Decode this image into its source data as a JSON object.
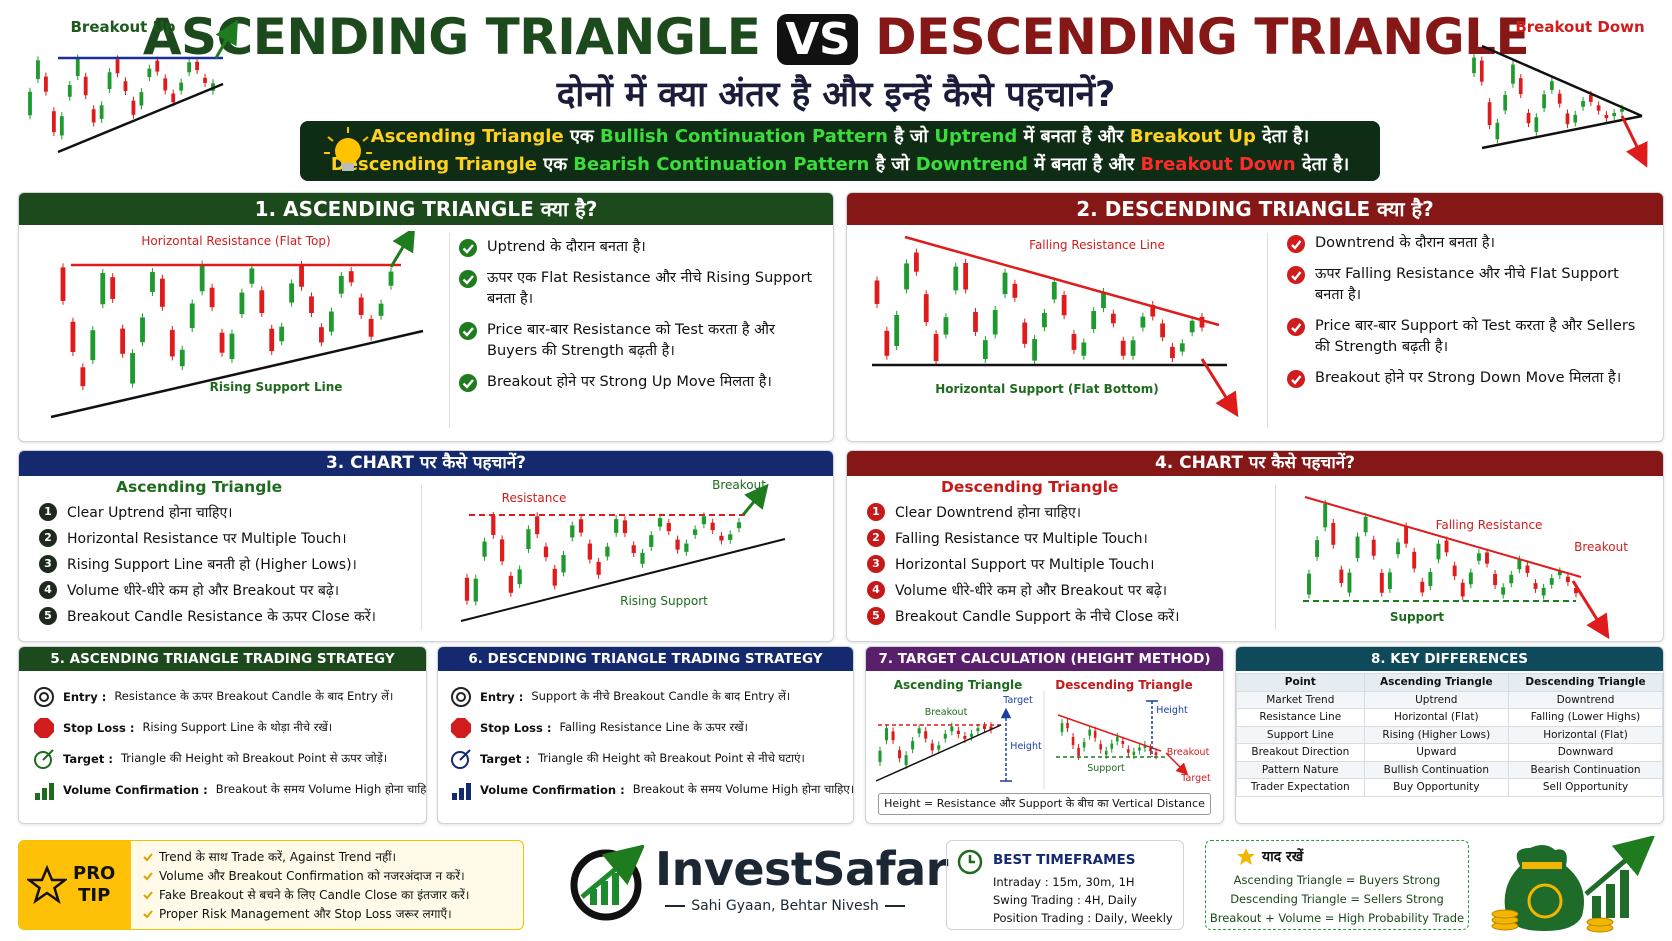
{
  "header": {
    "title_left": "ASCENDING TRIANGLE",
    "vs": "VS",
    "title_right": "DESCENDING TRIANGLE",
    "subtitle": "दोनों में क्या अंतर है और इन्हें कैसे पहचानें?",
    "corner_left": "Breakout Up",
    "corner_right": "Breakout Down",
    "summary": [
      [
        {
          "text": "Ascending Triangle",
          "color": "#ffd21f"
        },
        {
          "text": " एक ",
          "color": "#ffffff"
        },
        {
          "text": "Bullish Continuation Pattern",
          "color": "#3ddc3d"
        },
        {
          "text": " है जो ",
          "color": "#ffffff"
        },
        {
          "text": "Uptrend",
          "color": "#3ddc3d"
        },
        {
          "text": " में बनता है और ",
          "color": "#ffffff"
        },
        {
          "text": "Breakout Up",
          "color": "#ffd21f"
        },
        {
          "text": " देता है।",
          "color": "#ffffff"
        }
      ],
      [
        {
          "text": "Descending Triangle",
          "color": "#ffd21f"
        },
        {
          "text": " एक ",
          "color": "#ffffff"
        },
        {
          "text": "Bearish Continuation Pattern",
          "color": "#3ddc3d"
        },
        {
          "text": " है जो ",
          "color": "#ffffff"
        },
        {
          "text": "Downtrend",
          "color": "#3ddc3d"
        },
        {
          "text": " में बनता है और ",
          "color": "#ffffff"
        },
        {
          "text": "Breakout Down",
          "color": "#ff2b2b"
        },
        {
          "text": " देता है।",
          "color": "#ffffff"
        }
      ]
    ]
  },
  "section1": {
    "title": "1. ASCENDING TRIANGLE क्या है?",
    "resistance_label": "Horizontal Resistance (Flat Top)",
    "support_label": "Rising Support Line",
    "points": [
      "Uptrend के दौरान बनता है।",
      "ऊपर एक Flat Resistance और नीचे Rising Support बनता है।",
      "Price बार-बार Resistance को Test करता है और Buyers की Strength बढ़ती है।",
      "Breakout होने पर Strong Up Move मिलता है।"
    ]
  },
  "section2": {
    "title": "2. DESCENDING TRIANGLE क्या है?",
    "resistance_label": "Falling Resistance Line",
    "support_label": "Horizontal Support (Flat Bottom)",
    "points": [
      "Downtrend के दौरान बनता है।",
      "ऊपर Falling Resistance और नीचे Flat Support बनता है।",
      "Price बार-बार Support को Test करता है और Sellers की Strength बढ़ती है।",
      "Breakout होने पर Strong Down Move मिलता है।"
    ]
  },
  "section3": {
    "title": "3. CHART पर कैसे पहचानें?",
    "heading": "Ascending Triangle",
    "resistance_label": "Resistance",
    "breakout_label": "Breakout",
    "support_label": "Rising Support",
    "steps": [
      {
        "num": 1,
        "text": "Clear Uptrend होना चाहिए।"
      },
      {
        "num": 2,
        "text": "Horizontal Resistance पर Multiple Touch।"
      },
      {
        "num": 3,
        "text": "Rising Support Line बनती हो (Higher Lows)।"
      },
      {
        "num": 4,
        "text": "Volume धीरे-धीरे कम हो और Breakout पर बढ़े।"
      },
      {
        "num": 5,
        "text": "Breakout Candle Resistance के ऊपर Close करें।"
      }
    ]
  },
  "section4": {
    "title": "4. CHART पर कैसे पहचानें?",
    "heading": "Descending Triangle",
    "resistance_label": "Falling Resistance",
    "breakout_label": "Breakout",
    "support_label": "Support",
    "steps": [
      {
        "num": 1,
        "text": "Clear Downtrend होना चाहिए।"
      },
      {
        "num": 2,
        "text": "Falling Resistance पर Multiple Touch।"
      },
      {
        "num": 3,
        "text": "Horizontal Support पर Multiple Touch।"
      },
      {
        "num": 4,
        "text": "Volume धीरे-धीरे कम हो और Breakout पर बढ़े।"
      },
      {
        "num": 5,
        "text": "Breakout Candle Support के नीचे Close करें।"
      }
    ]
  },
  "section5": {
    "title": "5. ASCENDING TRIANGLE TRADING STRATEGY",
    "items": [
      {
        "label": "Entry :",
        "text": "Resistance के ऊपर Breakout Candle के बाद Entry लें।"
      },
      {
        "label": "Stop Loss :",
        "text": "Rising Support Line के थोड़ा नीचे रखें।"
      },
      {
        "label": "Target :",
        "text": "Triangle की Height को Breakout Point से ऊपर जोड़ें।"
      },
      {
        "label": "Volume Confirmation :",
        "text": "Breakout के समय Volume High होना चाहिए।"
      }
    ]
  },
  "section6": {
    "title": "6. DESCENDING TRIANGLE TRADING STRATEGY",
    "items": [
      {
        "label": "Entry :",
        "text": "Support के नीचे Breakout Candle के बाद Entry लें।"
      },
      {
        "label": "Stop Loss :",
        "text": "Falling Resistance Line के ऊपर रखें।"
      },
      {
        "label": "Target :",
        "text": "Triangle की Height को Breakout Point से नीचे घटाएं।"
      },
      {
        "label": "Volume Confirmation :",
        "text": "Breakout के समय Volume High होना चाहिए।"
      }
    ]
  },
  "section7": {
    "title": "7. TARGET CALCULATION (HEIGHT METHOD)",
    "left_heading": "Ascending Triangle",
    "left_breakout": "Breakout",
    "left_target": "Target",
    "left_height": "Height",
    "right_heading": "Descending Triangle",
    "right_height": "Height",
    "right_breakout": "Breakout",
    "right_support": "Support",
    "right_target": "Target",
    "formula": "Height = Resistance और Support के बीच का Vertical Distance"
  },
  "section8": {
    "title": "8. KEY DIFFERENCES",
    "table": {
      "header": [
        "Point",
        "Ascending Triangle",
        "Descending Triangle"
      ],
      "rows": [
        [
          "Market Trend",
          "Uptrend",
          "Downtrend"
        ],
        [
          "Resistance Line",
          "Horizontal (Flat)",
          "Falling (Lower Highs)"
        ],
        [
          "Support Line",
          "Rising (Higher Lows)",
          "Horizontal (Flat)"
        ],
        [
          "Breakout Direction",
          "Upward",
          "Downward"
        ],
        [
          "Pattern Nature",
          "Bullish Continuation",
          "Bearish Continuation"
        ],
        [
          "Trader Expectation",
          "Buy Opportunity",
          "Sell Opportunity"
        ]
      ]
    }
  },
  "footer": {
    "pro_tip": {
      "label_1": "PRO",
      "label_2": "TIP",
      "tips": [
        "Trend के साथ Trade करें, Against Trend नहीं।",
        "Volume और Breakout Confirmation को नजरअंदाज न करें।",
        "Fake Breakout से बचने के लिए Candle Close का इंतजार करें।",
        "Proper Risk Management और Stop Loss जरूर लगाएँ।"
      ]
    },
    "brand": {
      "name": "InvestSafar",
      "tagline": "Sahi Gyaan, Behtar Nivesh"
    },
    "timeframes": {
      "title": "BEST TIMEFRAMES",
      "lines": [
        "Intraday : 15m, 30m, 1H",
        "Swing Trading : 4H, Daily",
        "Position Trading : Daily, Weekly"
      ]
    },
    "remember": {
      "title": "याद रखें",
      "lines": [
        "Ascending Triangle = Buyers Strong",
        "Descending Triangle = Sellers Strong",
        "Breakout + Volume = High Probability Trade"
      ]
    }
  }
}
